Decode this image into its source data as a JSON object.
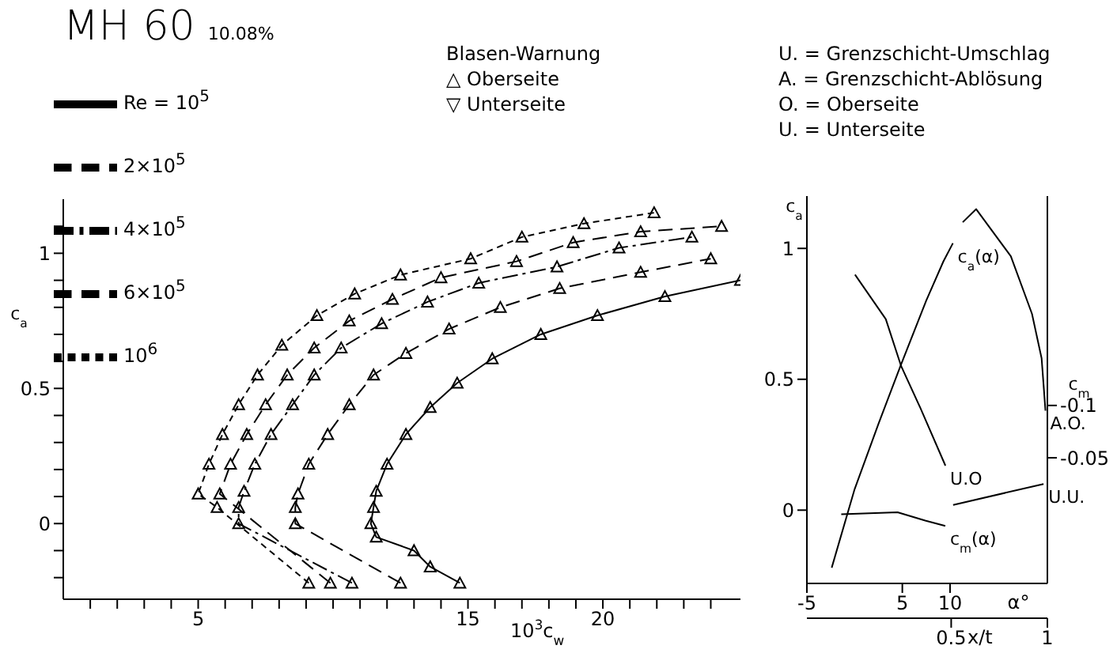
{
  "chart_data": [
    {
      "type": "line",
      "title": "MH 60",
      "subtitle": "10.08%",
      "xlabel": "10$^{3}$c$_{w}$",
      "ylabel": "c$_{a}$",
      "legend": "top left",
      "marker": "triangle",
      "grid": false,
      "annotations": [
        "Blasen-Warnung",
        "△ Oberseite",
        "▽ Unterseite",
        "U. = Grenzschicht-Umschlag",
        "A. = Grenzschicht-Ablösung",
        "O. = Oberseite",
        "U. = Unterseite"
      ],
      "xlim": [
        0,
        25.1
      ],
      "xticks": [
        {
          "value": 1,
          "label": null
        },
        {
          "value": 2,
          "label": null
        },
        {
          "value": 3,
          "label": null
        },
        {
          "value": 4,
          "label": null
        },
        5,
        {
          "value": 6,
          "label": null
        },
        {
          "value": 7,
          "label": null
        },
        {
          "value": 8,
          "label": null
        },
        {
          "value": 9,
          "label": null
        },
        {
          "value": 10,
          "label": null
        },
        {
          "value": 11,
          "label": null
        },
        {
          "value": 12,
          "label": null
        },
        {
          "value": 13,
          "label": null
        },
        {
          "value": 14,
          "label": null
        },
        15,
        {
          "value": 16,
          "label": null
        },
        {
          "value": 17,
          "label": null
        },
        {
          "value": 18,
          "label": null
        },
        {
          "value": 19,
          "label": null
        },
        20,
        {
          "value": 21,
          "label": null
        },
        {
          "value": 22,
          "label": null
        },
        {
          "value": 23,
          "label": null
        },
        {
          "value": 24,
          "label": null
        }
      ],
      "ylim": [
        -0.28,
        1.2
      ],
      "yticks": [
        {
          "value": -0.2,
          "label": null
        },
        {
          "value": -0.1,
          "label": null
        },
        0,
        {
          "value": 0.1,
          "label": null
        },
        {
          "value": 0.2,
          "label": null
        },
        {
          "value": 0.3,
          "label": null
        },
        {
          "value": 0.4,
          "label": null
        },
        0.5,
        {
          "value": 0.6,
          "label": null
        },
        {
          "value": 0.7,
          "label": null
        },
        {
          "value": 0.8,
          "label": null
        },
        {
          "value": 0.9,
          "label": null
        },
        1,
        {
          "value": 1.1,
          "label": null
        }
      ],
      "series": [
        {
          "name": "Re = 10$^{5}$",
          "color": "#000000",
          "line_style": "solid",
          "x": [
            14.7,
            13.6,
            13.0,
            11.6,
            11.4,
            11.5,
            11.6,
            12.0,
            12.7,
            13.6,
            14.6,
            15.9,
            17.7,
            19.8,
            22.3,
            25.1
          ],
          "values": [
            -0.22,
            -0.16,
            -0.1,
            -0.05,
            0,
            0.06,
            0.12,
            0.22,
            0.33,
            0.43,
            0.52,
            0.61,
            0.7,
            0.77,
            0.84,
            0.9
          ]
        },
        {
          "name": "2×10$^{5}$",
          "color": "#000000",
          "line_style": "dashed",
          "x": [
            12.5,
            8.6,
            8.6,
            8.7,
            9.1,
            9.8,
            10.6,
            11.5,
            12.7,
            14.3,
            16.2,
            18.4,
            21.4,
            24.0
          ],
          "values": [
            -0.22,
            0,
            0.06,
            0.11,
            0.22,
            0.33,
            0.44,
            0.55,
            0.63,
            0.72,
            0.8,
            0.87,
            0.93,
            0.98
          ]
        },
        {
          "name": "4×10$^{5}$",
          "color": "#000000",
          "line_style": "dashdot",
          "x": [
            10.7,
            6.5,
            6.5,
            6.7,
            7.1,
            7.7,
            8.5,
            9.3,
            10.3,
            11.8,
            13.5,
            15.4,
            18.3,
            20.6,
            23.3
          ],
          "values": [
            -0.22,
            0,
            0.06,
            0.12,
            0.22,
            0.33,
            0.44,
            0.55,
            0.65,
            0.74,
            0.82,
            0.89,
            0.95,
            1.02,
            1.06
          ]
        },
        {
          "name": "6×10$^{5}$",
          "color": "#000000",
          "line_style": "dashed",
          "x": [
            9.9,
            5.8,
            6.2,
            6.8,
            7.5,
            8.3,
            9.3,
            10.6,
            12.2,
            14.0,
            16.8,
            18.9,
            21.4,
            24.4
          ],
          "values": [
            -0.22,
            0.11,
            0.22,
            0.33,
            0.44,
            0.55,
            0.65,
            0.75,
            0.83,
            0.91,
            0.97,
            1.04,
            1.08,
            1.1
          ]
        },
        {
          "name": "10$^{6}$",
          "color": "#000000",
          "line_style": "dotted",
          "x": [
            9.1,
            5.7,
            5.0,
            5.4,
            5.9,
            6.5,
            7.2,
            8.1,
            9.4,
            10.8,
            12.5,
            15.1,
            17.0,
            19.3,
            21.9
          ],
          "values": [
            -0.22,
            0.06,
            0.11,
            0.22,
            0.33,
            0.44,
            0.55,
            0.66,
            0.77,
            0.85,
            0.92,
            0.98,
            1.06,
            1.11,
            1.15
          ]
        }
      ]
    },
    {
      "type": "line",
      "ylabel": "c$_{a}$",
      "xlabel": "α°",
      "x2label": "x/t",
      "y2label": "c$_{m}$",
      "marker": "none",
      "grid": false,
      "xlim": [
        -5,
        20.2
      ],
      "xticks": [
        -5,
        5,
        10
      ],
      "x2lim": [
        -0.25,
        1
      ],
      "x2ticks": [
        0.5,
        1
      ],
      "ylim": [
        -0.28,
        1.2
      ],
      "yticks": [
        0,
        0.5,
        1
      ],
      "y2lim": [
        0.07,
        -0.3
      ],
      "y2ticks": [
        -0.1,
        -0.05
      ],
      "series": [
        {
          "name": "c$_{a}$(α)",
          "color": "#000000",
          "x": [
            -2.4,
            0,
            2.5,
            4.8,
            7.5,
            9.3,
            10.3
          ],
          "values": [
            -0.22,
            0.08,
            0.33,
            0.55,
            0.8,
            0.95,
            1.02
          ]
        },
        {
          "name": "c$_{m}$(α)",
          "color": "#000000",
          "axis": "y2",
          "x": [
            -1.4,
            4.5,
            7.4,
            9.5
          ],
          "values": [
            0.004,
            0.002,
            0.01,
            0.015
          ]
        },
        {
          "name": "U.O",
          "color": "#000000",
          "axis": "x2",
          "x": [
            0,
            0.16,
            0.24,
            0.34,
            0.47
          ],
          "values": [
            0.9,
            0.73,
            0.55,
            0.39,
            0.17
          ]
        },
        {
          "name": "A.O.",
          "color": "#000000",
          "axis": "x2",
          "x": [
            0.56,
            0.63,
            0.81,
            0.92,
            0.97,
            0.99
          ],
          "values": [
            1.1,
            1.15,
            0.97,
            0.75,
            0.58,
            0.38
          ]
        },
        {
          "name": "U.U.",
          "color": "#000000",
          "axis": "x2",
          "x": [
            0.51,
            0.98
          ],
          "values": [
            0.02,
            0.1
          ]
        }
      ]
    }
  ]
}
